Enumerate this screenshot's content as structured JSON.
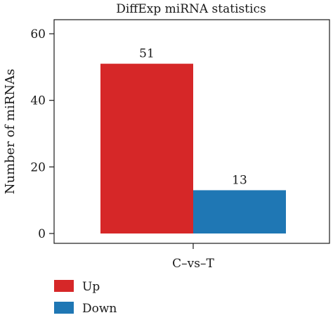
{
  "chart_data": {
    "type": "bar",
    "title": "DiffExp miRNA statistics",
    "xlabel": "",
    "ylabel": "Number of miRNAs",
    "categories": [
      "C–vs–T"
    ],
    "series": [
      {
        "name": "Up",
        "values": [
          51
        ],
        "color": "#d62728"
      },
      {
        "name": "Down",
        "values": [
          13
        ],
        "color": "#1f77b4"
      }
    ],
    "ylim": [
      0,
      64
    ],
    "yticks": [
      0,
      20,
      40,
      60
    ],
    "grid": false,
    "legend_position": "bottom-left",
    "data_labels": [
      "51",
      "13"
    ]
  }
}
